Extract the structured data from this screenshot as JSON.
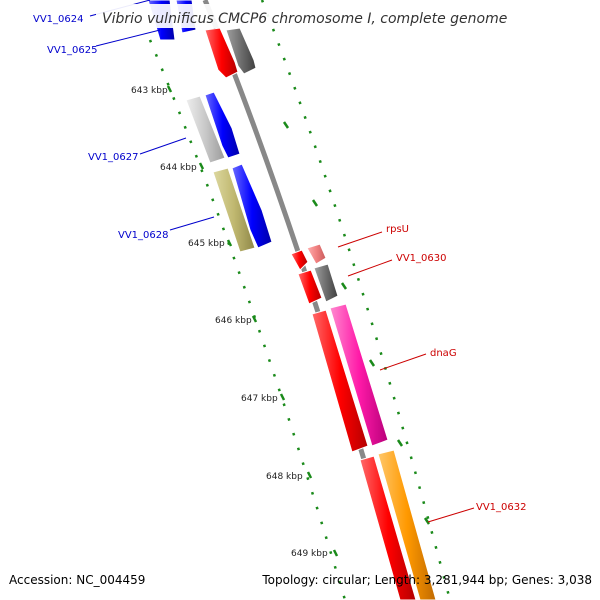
{
  "title": "Vibrio vulnificus CMCP6 chromosome I, complete genome",
  "footer": {
    "accession": "Accession: NC_004459",
    "stats": "Topology: circular; Length: 3,281,944 bp; Genes: 3,038"
  },
  "colors": {
    "backbone": "#888888",
    "tick": "#1a8a1a",
    "label_blue": "#0000cc",
    "label_red": "#cc0000"
  },
  "ticks": [
    "643 kbp",
    "644 kbp",
    "645 kbp",
    "646 kbp",
    "647 kbp",
    "648 kbp",
    "649 kbp"
  ],
  "genes": [
    {
      "name": "VV1_0624",
      "color": "#0000ff"
    },
    {
      "name": "VV1_0625",
      "color": "#0000ff"
    },
    {
      "name": "VV1_0627",
      "color": "#0000ff"
    },
    {
      "name": "VV1_0628",
      "color": "#0000ff"
    },
    {
      "name": "rpsU",
      "color": "#ff0000"
    },
    {
      "name": "VV1_0630",
      "color": "#ff0000"
    },
    {
      "name": "dnaG",
      "color": "#ff0000"
    },
    {
      "name": "VV1_0632",
      "color": "#ff0000"
    }
  ]
}
